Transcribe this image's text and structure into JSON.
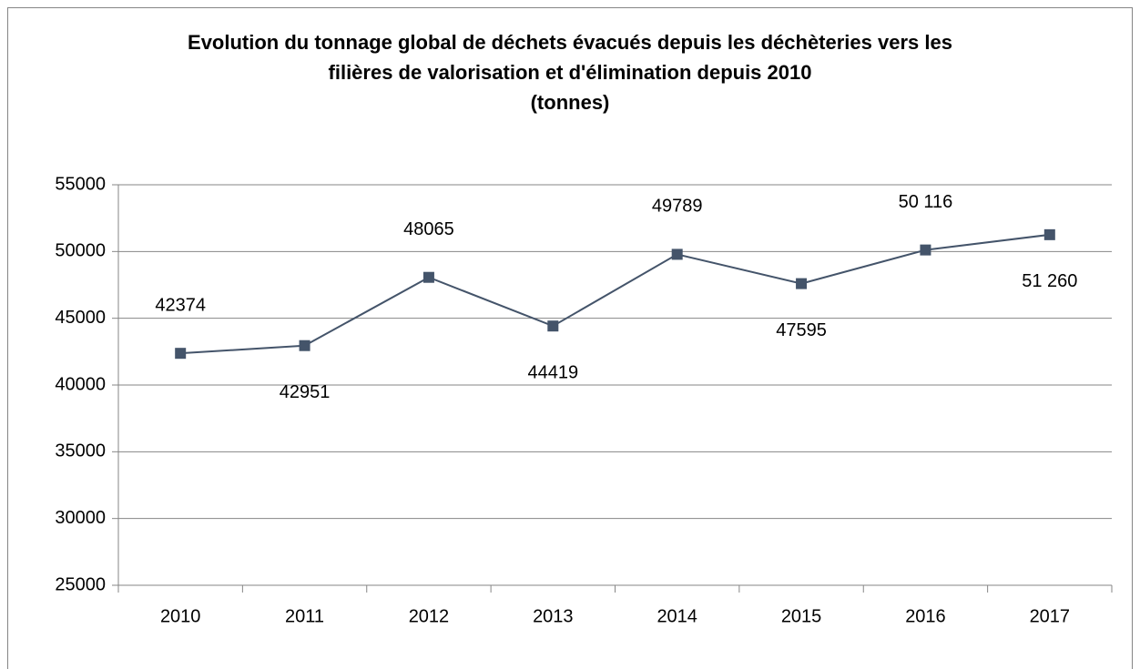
{
  "chart_data": {
    "type": "line",
    "title": [
      "Evolution du tonnage global de déchets évacués depuis les déchèteries vers les",
      "filières de valorisation et d'élimination depuis 2010",
      "(tonnes)"
    ],
    "categories": [
      "2010",
      "2011",
      "2012",
      "2013",
      "2014",
      "2015",
      "2016",
      "2017"
    ],
    "series": [
      {
        "name": "Tonnage",
        "color": "#44546a",
        "values": [
          42374,
          42951,
          48065,
          44419,
          49789,
          47595,
          50116,
          51260
        ],
        "value_labels": [
          "42374",
          "42951",
          "48065",
          "44419",
          "49789",
          "47595",
          "50 116",
          "51 260"
        ]
      }
    ],
    "ylim": [
      25000,
      55000
    ],
    "yticks": [
      25000,
      30000,
      35000,
      40000,
      45000,
      50000,
      55000
    ],
    "grid": true
  }
}
